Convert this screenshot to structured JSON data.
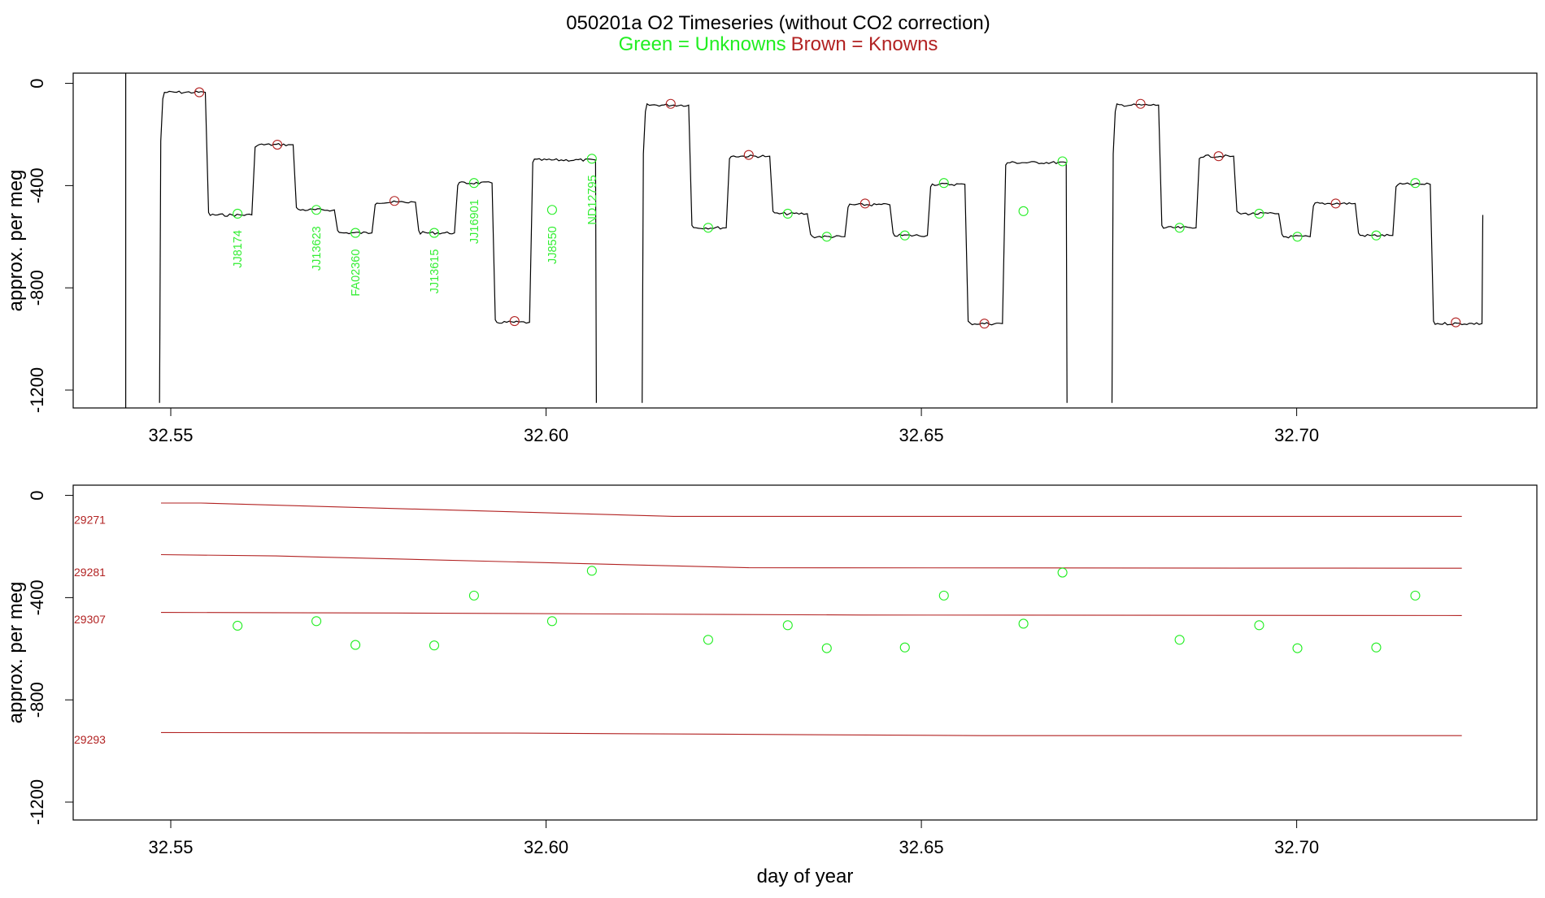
{
  "title": "050201a   O2 Timeseries (without CO2 correction)",
  "subtitle_unknowns": "Green = Unknowns",
  "subtitle_knowns": "Brown = Knowns",
  "colors": {
    "unknowns": "#22ee22",
    "knowns": "#b22222",
    "trace": "#000000"
  },
  "chart_data": [
    {
      "type": "line",
      "ylabel": "approx. per meg",
      "xlabel": "",
      "xlim": [
        32.537,
        32.732
      ],
      "ylim": [
        -1270,
        40
      ],
      "x_ticks": [
        "32.55",
        "32.60",
        "32.65",
        "32.70"
      ],
      "y_ticks": [
        "0",
        "-400",
        "-800",
        "-1200"
      ],
      "start_marker_x": 32.544,
      "trace_levels": [
        {
          "x0": 32.5485,
          "x1": 32.5546,
          "y": -35,
          "start_y": -1250
        },
        {
          "x0": 32.5546,
          "x1": 32.5608,
          "y": -515
        },
        {
          "x0": 32.5608,
          "x1": 32.5663,
          "y": -240
        },
        {
          "x0": 32.5663,
          "x1": 32.5718,
          "y": -495
        },
        {
          "x0": 32.5718,
          "x1": 32.5768,
          "y": -585
        },
        {
          "x0": 32.5768,
          "x1": 32.5826,
          "y": -465
        },
        {
          "x0": 32.5826,
          "x1": 32.5878,
          "y": -585
        },
        {
          "x0": 32.5878,
          "x1": 32.5928,
          "y": -390
        },
        {
          "x0": 32.5928,
          "x1": 32.5978,
          "y": -935
        },
        {
          "x0": 32.5978,
          "x1": 32.6067,
          "y": -300,
          "end_y": -1250
        },
        {
          "x0": 32.6128,
          "x1": 32.619,
          "y": -85,
          "start_y": -1250
        },
        {
          "x0": 32.619,
          "x1": 32.624,
          "y": -565
        },
        {
          "x0": 32.624,
          "x1": 32.6298,
          "y": -285
        },
        {
          "x0": 32.6298,
          "x1": 32.6348,
          "y": -510
        },
        {
          "x0": 32.6348,
          "x1": 32.6398,
          "y": -600
        },
        {
          "x0": 32.6398,
          "x1": 32.6458,
          "y": -475
        },
        {
          "x0": 32.6458,
          "x1": 32.6508,
          "y": -595
        },
        {
          "x0": 32.6508,
          "x1": 32.6558,
          "y": -395
        },
        {
          "x0": 32.6558,
          "x1": 32.6608,
          "y": -940
        },
        {
          "x0": 32.6608,
          "x1": 32.6694,
          "y": -310,
          "end_y": -1250
        },
        {
          "x0": 32.6754,
          "x1": 32.6816,
          "y": -85,
          "start_y": -1250
        },
        {
          "x0": 32.6816,
          "x1": 32.6866,
          "y": -565
        },
        {
          "x0": 32.6866,
          "x1": 32.6916,
          "y": -285
        },
        {
          "x0": 32.6916,
          "x1": 32.6976,
          "y": -510
        },
        {
          "x0": 32.6976,
          "x1": 32.7018,
          "y": -600
        },
        {
          "x0": 32.7018,
          "x1": 32.7078,
          "y": -470
        },
        {
          "x0": 32.7078,
          "x1": 32.7128,
          "y": -595
        },
        {
          "x0": 32.7128,
          "x1": 32.7178,
          "y": -395
        },
        {
          "x0": 32.7178,
          "x1": 32.7248,
          "y": -940,
          "end_y": -515
        }
      ],
      "knowns_points": [
        {
          "x": 32.5538,
          "y": -35
        },
        {
          "x": 32.5642,
          "y": -240
        },
        {
          "x": 32.5798,
          "y": -460
        },
        {
          "x": 32.5958,
          "y": -930
        },
        {
          "x": 32.6166,
          "y": -80
        },
        {
          "x": 32.627,
          "y": -280
        },
        {
          "x": 32.6425,
          "y": -470
        },
        {
          "x": 32.6584,
          "y": -940
        },
        {
          "x": 32.6792,
          "y": -80
        },
        {
          "x": 32.6896,
          "y": -285
        },
        {
          "x": 32.7052,
          "y": -470
        },
        {
          "x": 32.7212,
          "y": -935
        }
      ],
      "unknowns_points": [
        {
          "x": 32.5589,
          "y": -510,
          "label": "JJ8174"
        },
        {
          "x": 32.5694,
          "y": -495,
          "label": "JJ13623"
        },
        {
          "x": 32.5746,
          "y": -585,
          "label": "FA02360"
        },
        {
          "x": 32.5851,
          "y": -585,
          "label": "JJ13615"
        },
        {
          "x": 32.5904,
          "y": -390,
          "label": "JJ16901"
        },
        {
          "x": 32.6008,
          "y": -495,
          "label": "JJ8550"
        },
        {
          "x": 32.6061,
          "y": -295,
          "label": "ND12795"
        },
        {
          "x": 32.6216,
          "y": -565
        },
        {
          "x": 32.6322,
          "y": -510
        },
        {
          "x": 32.6374,
          "y": -600
        },
        {
          "x": 32.6478,
          "y": -595
        },
        {
          "x": 32.653,
          "y": -390
        },
        {
          "x": 32.6636,
          "y": -500
        },
        {
          "x": 32.6688,
          "y": -305
        },
        {
          "x": 32.6844,
          "y": -565
        },
        {
          "x": 32.695,
          "y": -510
        },
        {
          "x": 32.7001,
          "y": -600
        },
        {
          "x": 32.7106,
          "y": -595
        },
        {
          "x": 32.7158,
          "y": -390
        }
      ]
    },
    {
      "type": "scatter",
      "ylabel": "approx. per meg",
      "xlabel": "day of year",
      "xlim": [
        32.537,
        32.732
      ],
      "ylim": [
        -1270,
        40
      ],
      "x_ticks": [
        "32.55",
        "32.60",
        "32.65",
        "32.70"
      ],
      "y_ticks": [
        "0",
        "-400",
        "-800",
        "-1200"
      ],
      "reference_lines": [
        {
          "name": "29271",
          "label_y": -95,
          "points": [
            [
              32.5487,
              -30
            ],
            [
              32.554,
              -30
            ],
            [
              32.617,
              -82
            ],
            [
              32.722,
              -82
            ]
          ]
        },
        {
          "name": "29281",
          "label_y": -300,
          "points": [
            [
              32.5487,
              -232
            ],
            [
              32.564,
              -237
            ],
            [
              32.627,
              -283
            ],
            [
              32.722,
              -285
            ]
          ]
        },
        {
          "name": "29307",
          "label_y": -485,
          "points": [
            [
              32.5487,
              -458
            ],
            [
              32.58,
              -460
            ],
            [
              32.642,
              -468
            ],
            [
              32.722,
              -470
            ]
          ]
        },
        {
          "name": "29293",
          "label_y": -955,
          "points": [
            [
              32.5487,
              -928
            ],
            [
              32.596,
              -930
            ],
            [
              32.658,
              -940
            ],
            [
              32.722,
              -940
            ]
          ]
        }
      ],
      "unknowns_points": [
        {
          "x": 32.5589,
          "y": -510
        },
        {
          "x": 32.5694,
          "y": -492
        },
        {
          "x": 32.5746,
          "y": -585
        },
        {
          "x": 32.5851,
          "y": -587
        },
        {
          "x": 32.5904,
          "y": -392
        },
        {
          "x": 32.6008,
          "y": -492
        },
        {
          "x": 32.6061,
          "y": -295
        },
        {
          "x": 32.6216,
          "y": -565
        },
        {
          "x": 32.6322,
          "y": -508
        },
        {
          "x": 32.6374,
          "y": -598
        },
        {
          "x": 32.6478,
          "y": -595
        },
        {
          "x": 32.653,
          "y": -392
        },
        {
          "x": 32.6636,
          "y": -502
        },
        {
          "x": 32.6688,
          "y": -302
        },
        {
          "x": 32.6844,
          "y": -565
        },
        {
          "x": 32.695,
          "y": -508
        },
        {
          "x": 32.7001,
          "y": -598
        },
        {
          "x": 32.7106,
          "y": -595
        },
        {
          "x": 32.7158,
          "y": -392
        }
      ]
    }
  ]
}
